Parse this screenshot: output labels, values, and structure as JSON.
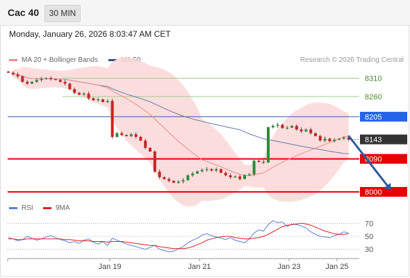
{
  "header": {
    "title": "Cac 40",
    "timeframe": "30 MIN"
  },
  "datetime": "Monday, January 26, 2026 8:03:47 AM CET",
  "legend": {
    "items": [
      {
        "label": "MA 20 + Bollinger Bands",
        "color": "#f08a8a"
      },
      {
        "label": "MA 50",
        "color": "#2b4f8c"
      }
    ],
    "rsi_items": [
      {
        "label": "RSI",
        "color": "#5b7fd4"
      },
      {
        "label": "9MA",
        "color": "#e02020"
      }
    ]
  },
  "credit": "Research © 2026 Trading Central",
  "chart_data": {
    "type": "candlestick",
    "ylim": [
      7985,
      8345
    ],
    "x_ticks": [
      "Jan 19",
      "Jan 21",
      "Jan 23",
      "Jan 25"
    ],
    "levels": [
      {
        "value": 8310,
        "label": "8310",
        "style": "resistance"
      },
      {
        "value": 8260,
        "label": "8260",
        "style": "resistance"
      },
      {
        "value": 8205,
        "label": "8205",
        "style": "ma50"
      },
      {
        "value": 8143,
        "label": "8143",
        "style": "last"
      },
      {
        "value": 8090,
        "label": "8090",
        "style": "pivot"
      },
      {
        "value": 8000,
        "label": "8000",
        "style": "support"
      }
    ],
    "colors": {
      "up": "#2e8b3a",
      "down": "#cc2222",
      "ma20": "#f08a8a",
      "ma50": "#5f78b3",
      "band": "#fbd7d7",
      "arrow": "#2b5a9e"
    },
    "close": [
      8325,
      8320,
      8315,
      8300,
      8295,
      8300,
      8305,
      8308,
      8310,
      8307,
      8305,
      8300,
      8295,
      8280,
      8270,
      8265,
      8268,
      8255,
      8250,
      8252,
      8245,
      8248,
      8150,
      8160,
      8155,
      8152,
      8157,
      8150,
      8140,
      8120,
      8110,
      8055,
      8040,
      8035,
      8030,
      8025,
      8028,
      8032,
      8045,
      8050,
      8056,
      8060,
      8062,
      8058,
      8062,
      8052,
      8045,
      8040,
      8042,
      8035,
      8046,
      8048,
      8085,
      8082,
      8080,
      8176,
      8180,
      8183,
      8174,
      8175,
      8180,
      8170,
      8165,
      8170,
      8160,
      8152,
      8140,
      8145,
      8138,
      8142,
      8145,
      8148,
      8143
    ],
    "arrow": {
      "from": {
        "index": 72,
        "value": 8153
      },
      "to": {
        "index": 81,
        "value": 8004
      }
    },
    "rsi": {
      "ylim": [
        20,
        80
      ],
      "ticks": [
        70,
        50,
        30
      ],
      "rsi": [
        48,
        46,
        43,
        45,
        50,
        47,
        44,
        46,
        49,
        51,
        48,
        45,
        43,
        40,
        42,
        39,
        44,
        46,
        41,
        38,
        42,
        36,
        47,
        44,
        41,
        38,
        36,
        34,
        32,
        30,
        33,
        36,
        30,
        28,
        26,
        27,
        31,
        34,
        40,
        44,
        47,
        52,
        54,
        51,
        49,
        47,
        45,
        48,
        44,
        42,
        40,
        46,
        55,
        60,
        58,
        68,
        74,
        71,
        72,
        65,
        69,
        68,
        66,
        63,
        57,
        53,
        50,
        49,
        48,
        51,
        53,
        57,
        55
      ],
      "ma9": [
        46,
        46,
        45,
        45,
        46,
        46,
        46,
        46,
        46,
        46,
        46,
        46,
        45,
        45,
        44,
        43,
        43,
        43,
        42,
        42,
        42,
        41,
        42,
        42,
        42,
        41,
        40,
        39,
        38,
        37,
        36,
        36,
        34,
        33,
        32,
        31,
        31,
        31,
        32,
        34,
        37,
        40,
        44,
        46,
        48,
        49,
        50,
        50,
        48,
        47,
        46,
        46,
        47,
        48,
        50,
        53,
        57,
        61,
        65,
        67,
        68,
        69,
        70,
        69,
        67,
        64,
        61,
        58,
        56,
        54,
        53,
        53,
        54
      ]
    }
  }
}
